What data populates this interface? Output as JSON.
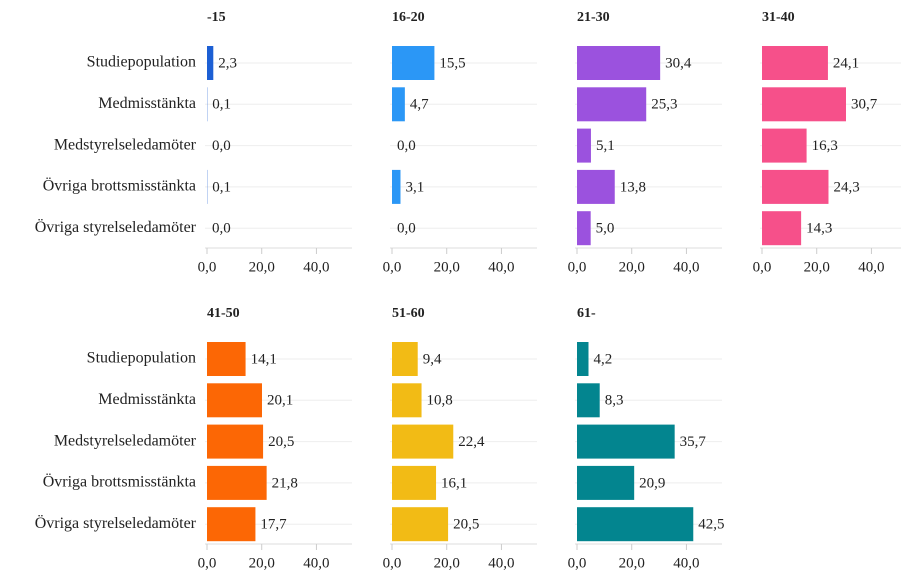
{
  "chart_data": [
    {
      "type": "bar",
      "title": "-15",
      "categories": [
        "Studiepopulation",
        "Medmisstänkta",
        "Medstyrelseledamöter",
        "Övriga brottsmisstänkta",
        "Övriga styrelseledamöter"
      ],
      "values": [
        2.3,
        0.1,
        0.0,
        0.1,
        0.0
      ],
      "value_labels": [
        "2,3",
        "0,1",
        "0,0",
        "0,1",
        "0,0"
      ],
      "color": "#1c5fd4",
      "xlim": [
        0,
        53
      ],
      "xticks": [
        {
          "value": 0,
          "label": "0,0"
        },
        {
          "value": 20,
          "label": "20,0"
        },
        {
          "value": 40,
          "label": "40,0"
        }
      ]
    },
    {
      "type": "bar",
      "title": "16-20",
      "values": [
        15.5,
        4.7,
        0.0,
        3.1,
        0.0
      ],
      "value_labels": [
        "15,5",
        "4,7",
        "0,0",
        "3,1",
        "0,0"
      ],
      "color": "#2b97f6",
      "xlim": [
        0,
        53
      ],
      "xticks": [
        {
          "value": 0,
          "label": "0,0"
        },
        {
          "value": 20,
          "label": "20,0"
        },
        {
          "value": 40,
          "label": "40,0"
        }
      ]
    },
    {
      "type": "bar",
      "title": "21-30",
      "values": [
        30.4,
        25.3,
        5.1,
        13.8,
        5.0
      ],
      "value_labels": [
        "30,4",
        "25,3",
        "5,1",
        "13,8",
        "5,0"
      ],
      "color": "#9b52de",
      "xlim": [
        0,
        53
      ],
      "xticks": [
        {
          "value": 0,
          "label": "0,0"
        },
        {
          "value": 20,
          "label": "20,0"
        },
        {
          "value": 40,
          "label": "40,0"
        }
      ]
    },
    {
      "type": "bar",
      "title": "31-40",
      "values": [
        24.1,
        30.7,
        16.3,
        24.3,
        14.3
      ],
      "value_labels": [
        "24,1",
        "30,7",
        "16,3",
        "24,3",
        "14,3"
      ],
      "color": "#f6508a",
      "xlim": [
        0,
        53
      ],
      "xticks": [
        {
          "value": 0,
          "label": "0,0"
        },
        {
          "value": 20,
          "label": "20,0"
        },
        {
          "value": 40,
          "label": "40,0"
        }
      ]
    },
    {
      "type": "bar",
      "title": "41-50",
      "categories": [
        "Studiepopulation",
        "Medmisstänkta",
        "Medstyrelseledamöter",
        "Övriga brottsmisstänkta",
        "Övriga styrelseledamöter"
      ],
      "values": [
        14.1,
        20.1,
        20.5,
        21.8,
        17.7
      ],
      "value_labels": [
        "14,1",
        "20,1",
        "20,5",
        "21,8",
        "17,7"
      ],
      "color": "#fc6705",
      "xlim": [
        0,
        53
      ],
      "xticks": [
        {
          "value": 0,
          "label": "0,0"
        },
        {
          "value": 20,
          "label": "20,0"
        },
        {
          "value": 40,
          "label": "40,0"
        }
      ]
    },
    {
      "type": "bar",
      "title": "51-60",
      "values": [
        9.4,
        10.8,
        22.4,
        16.1,
        20.5
      ],
      "value_labels": [
        "9,4",
        "10,8",
        "22,4",
        "16,1",
        "20,5"
      ],
      "color": "#f2bb15",
      "xlim": [
        0,
        53
      ],
      "xticks": [
        {
          "value": 0,
          "label": "0,0"
        },
        {
          "value": 20,
          "label": "20,0"
        },
        {
          "value": 40,
          "label": "40,0"
        }
      ]
    },
    {
      "type": "bar",
      "title": "61-",
      "values": [
        4.2,
        8.3,
        35.7,
        20.9,
        42.5
      ],
      "value_labels": [
        "4,2",
        "8,3",
        "35,7",
        "20,9",
        "42,5"
      ],
      "color": "#03858f",
      "xlim": [
        0,
        53
      ],
      "xticks": [
        {
          "value": 0,
          "label": "0,0"
        },
        {
          "value": 20,
          "label": "20,0"
        },
        {
          "value": 40,
          "label": "40,0"
        }
      ]
    }
  ]
}
